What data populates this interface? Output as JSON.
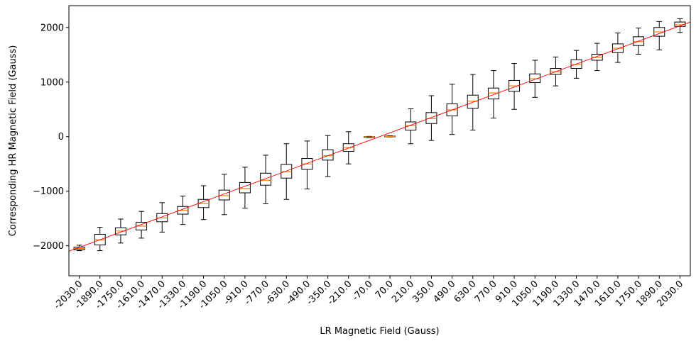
{
  "chart_data": {
    "type": "box",
    "xlabel": "LR Magnetic Field (Gauss)",
    "ylabel": "Corresponding HR Magnetic Field (Gauss)",
    "ylim": [
      -2550,
      2400
    ],
    "yticks": [
      -2000,
      -1000,
      0,
      1000,
      2000
    ],
    "ytick_labels": [
      "−2000",
      "−1000",
      "0",
      "1000",
      "2000"
    ],
    "grid": false,
    "categories": [
      "-2030.0",
      "-1890.0",
      "-1750.0",
      "-1610.0",
      "-1470.0",
      "-1330.0",
      "-1190.0",
      "-1050.0",
      "-910.0",
      "-770.0",
      "-630.0",
      "-490.0",
      "-350.0",
      "-210.0",
      "-70.0",
      "70.0",
      "210.0",
      "350.0",
      "490.0",
      "630.0",
      "770.0",
      "910.0",
      "1050.0",
      "1190.0",
      "1330.0",
      "1470.0",
      "1610.0",
      "1750.0",
      "1890.0",
      "2030.0"
    ],
    "boxes": [
      {
        "whisker_low": -2090,
        "q1": -2075,
        "median": -2050,
        "q3": -2025,
        "whisker_high": -1990
      },
      {
        "whisker_low": -2090,
        "q1": -1985,
        "median": -1890,
        "q3": -1790,
        "whisker_high": -1660
      },
      {
        "whisker_low": -1950,
        "q1": -1800,
        "median": -1730,
        "q3": -1670,
        "whisker_high": -1510
      },
      {
        "whisker_low": -1860,
        "q1": -1710,
        "median": -1640,
        "q3": -1570,
        "whisker_high": -1370
      },
      {
        "whisker_low": -1750,
        "q1": -1560,
        "median": -1490,
        "q3": -1410,
        "whisker_high": -1210
      },
      {
        "whisker_low": -1610,
        "q1": -1420,
        "median": -1350,
        "q3": -1280,
        "whisker_high": -1090
      },
      {
        "whisker_low": -1520,
        "q1": -1300,
        "median": -1230,
        "q3": -1150,
        "whisker_high": -900
      },
      {
        "whisker_low": -1430,
        "q1": -1160,
        "median": -1080,
        "q3": -980,
        "whisker_high": -690
      },
      {
        "whisker_low": -1310,
        "q1": -1030,
        "median": -950,
        "q3": -840,
        "whisker_high": -560
      },
      {
        "whisker_low": -1230,
        "q1": -890,
        "median": -800,
        "q3": -670,
        "whisker_high": -340
      },
      {
        "whisker_low": -1150,
        "q1": -760,
        "median": -640,
        "q3": -510,
        "whisker_high": -130
      },
      {
        "whisker_low": -960,
        "q1": -600,
        "median": -500,
        "q3": -400,
        "whisker_high": -80
      },
      {
        "whisker_low": -730,
        "q1": -430,
        "median": -350,
        "q3": -240,
        "whisker_high": 20
      },
      {
        "whisker_low": -500,
        "q1": -270,
        "median": -200,
        "q3": -130,
        "whisker_high": 90
      },
      {
        "whisker_low": -18,
        "q1": -12,
        "median": -5,
        "q3": 0,
        "whisker_high": 5
      },
      {
        "whisker_low": -5,
        "q1": 0,
        "median": 3,
        "q3": 10,
        "whisker_high": 15
      },
      {
        "whisker_low": -130,
        "q1": 120,
        "median": 200,
        "q3": 270,
        "whisker_high": 510
      },
      {
        "whisker_low": -70,
        "q1": 240,
        "median": 330,
        "q3": 440,
        "whisker_high": 750
      },
      {
        "whisker_low": 40,
        "q1": 380,
        "median": 490,
        "q3": 600,
        "whisker_high": 960
      },
      {
        "whisker_low": 120,
        "q1": 520,
        "median": 650,
        "q3": 760,
        "whisker_high": 1140
      },
      {
        "whisker_low": 340,
        "q1": 690,
        "median": 800,
        "q3": 890,
        "whisker_high": 1210
      },
      {
        "whisker_low": 500,
        "q1": 830,
        "median": 930,
        "q3": 1030,
        "whisker_high": 1340
      },
      {
        "whisker_low": 720,
        "q1": 990,
        "median": 1060,
        "q3": 1150,
        "whisker_high": 1400
      },
      {
        "whisker_low": 930,
        "q1": 1140,
        "median": 1190,
        "q3": 1250,
        "whisker_high": 1460
      },
      {
        "whisker_low": 1070,
        "q1": 1250,
        "median": 1320,
        "q3": 1410,
        "whisker_high": 1580
      },
      {
        "whisker_low": 1210,
        "q1": 1400,
        "median": 1450,
        "q3": 1510,
        "whisker_high": 1710
      },
      {
        "whisker_low": 1360,
        "q1": 1540,
        "median": 1620,
        "q3": 1700,
        "whisker_high": 1900
      },
      {
        "whisker_low": 1510,
        "q1": 1670,
        "median": 1740,
        "q3": 1830,
        "whisker_high": 1990
      },
      {
        "whisker_low": 1590,
        "q1": 1840,
        "median": 1920,
        "q3": 2000,
        "whisker_high": 2110
      },
      {
        "whisker_low": 1910,
        "q1": 2020,
        "median": 2050,
        "q3": 2100,
        "whisker_high": 2160
      }
    ],
    "reference_line": {
      "type": "identity",
      "color": "#ff0000"
    },
    "box_color": "#000000",
    "median_color": "#ff7f0e"
  }
}
